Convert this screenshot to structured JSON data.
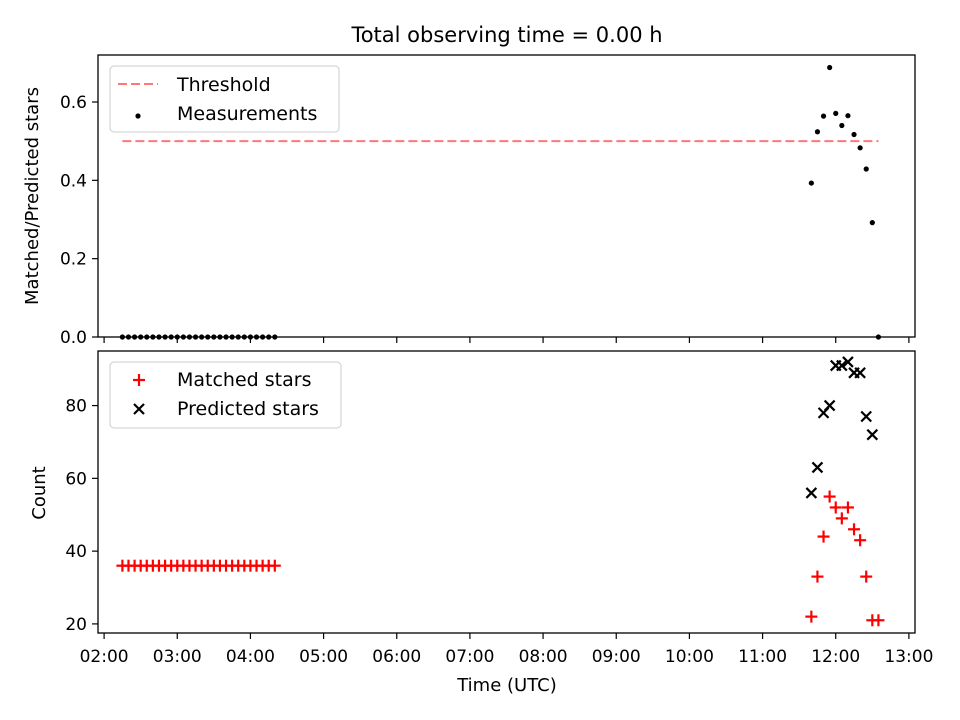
{
  "chart_data": [
    {
      "type": "scatter",
      "title": "Total observing time = 0.00 h",
      "xlabel": "",
      "ylabel": "Matched/Predicted stars",
      "xlim": [
        "01:55",
        "13:05"
      ],
      "ylim": [
        0,
        0.72
      ],
      "yticks": [
        0.0,
        0.2,
        0.4,
        0.6
      ],
      "ytick_labels": [
        "0.0",
        "0.2",
        "0.4",
        "0.6"
      ],
      "grid": false,
      "legend": {
        "location": "upper left",
        "entries": [
          "Threshold",
          "Measurements"
        ]
      },
      "series": [
        {
          "name": "Threshold",
          "type": "line",
          "style": "dashed",
          "color": "#ff7777",
          "x": [
            "02:15",
            "12:35"
          ],
          "y": [
            0.5,
            0.5
          ]
        },
        {
          "name": "Measurements",
          "type": "scatter",
          "marker": "dot",
          "color": "#000000",
          "x": [
            "02:15",
            "02:20",
            "02:25",
            "02:30",
            "02:35",
            "02:40",
            "02:45",
            "02:50",
            "02:55",
            "03:00",
            "03:05",
            "03:10",
            "03:15",
            "03:20",
            "03:25",
            "03:30",
            "03:35",
            "03:40",
            "03:45",
            "03:50",
            "03:55",
            "04:00",
            "04:05",
            "04:10",
            "04:15",
            "04:20",
            "11:40",
            "11:45",
            "11:50",
            "11:55",
            "12:00",
            "12:05",
            "12:10",
            "12:15",
            "12:20",
            "12:25",
            "12:30",
            "12:35"
          ],
          "y": [
            0,
            0,
            0,
            0,
            0,
            0,
            0,
            0,
            0,
            0,
            0,
            0,
            0,
            0,
            0,
            0,
            0,
            0,
            0,
            0,
            0,
            0,
            0,
            0,
            0,
            0,
            0.393,
            0.524,
            0.564,
            0.688,
            0.571,
            0.54,
            0.565,
            0.517,
            0.483,
            0.429,
            0.292,
            0.0
          ]
        }
      ]
    },
    {
      "type": "scatter",
      "title": "",
      "xlabel": "Time (UTC)",
      "ylabel": "Count",
      "xlim": [
        "01:55",
        "13:05"
      ],
      "ylim": [
        17.5,
        95
      ],
      "yticks": [
        20,
        40,
        60,
        80
      ],
      "ytick_labels": [
        "20",
        "40",
        "60",
        "80"
      ],
      "xticks": [
        "02:00",
        "03:00",
        "04:00",
        "05:00",
        "06:00",
        "07:00",
        "08:00",
        "09:00",
        "10:00",
        "11:00",
        "12:00",
        "13:00"
      ],
      "grid": false,
      "legend": {
        "location": "upper left",
        "entries": [
          "Matched stars",
          "Predicted stars"
        ]
      },
      "series": [
        {
          "name": "Matched stars",
          "type": "scatter",
          "marker": "plus",
          "color": "#ff0000",
          "x": [
            "02:15",
            "02:20",
            "02:25",
            "02:30",
            "02:35",
            "02:40",
            "02:45",
            "02:50",
            "02:55",
            "03:00",
            "03:05",
            "03:10",
            "03:15",
            "03:20",
            "03:25",
            "03:30",
            "03:35",
            "03:40",
            "03:45",
            "03:50",
            "03:55",
            "04:00",
            "04:05",
            "04:10",
            "04:15",
            "04:20",
            "11:40",
            "11:45",
            "11:50",
            "11:55",
            "12:00",
            "12:05",
            "12:10",
            "12:15",
            "12:20",
            "12:25",
            "12:30",
            "12:35"
          ],
          "y": [
            36,
            36,
            36,
            36,
            36,
            36,
            36,
            36,
            36,
            36,
            36,
            36,
            36,
            36,
            36,
            36,
            36,
            36,
            36,
            36,
            36,
            36,
            36,
            36,
            36,
            36,
            22,
            33,
            44,
            55,
            52,
            49,
            52,
            46,
            43,
            33,
            21,
            21
          ]
        },
        {
          "name": "Predicted stars",
          "type": "scatter",
          "marker": "x",
          "color": "#000000",
          "x": [
            "11:40",
            "11:45",
            "11:50",
            "11:55",
            "12:00",
            "12:05",
            "12:10",
            "12:15",
            "12:20",
            "12:25",
            "12:30"
          ],
          "y": [
            56,
            63,
            78,
            80,
            91,
            91,
            92,
            89,
            89,
            77,
            72
          ]
        }
      ]
    }
  ]
}
